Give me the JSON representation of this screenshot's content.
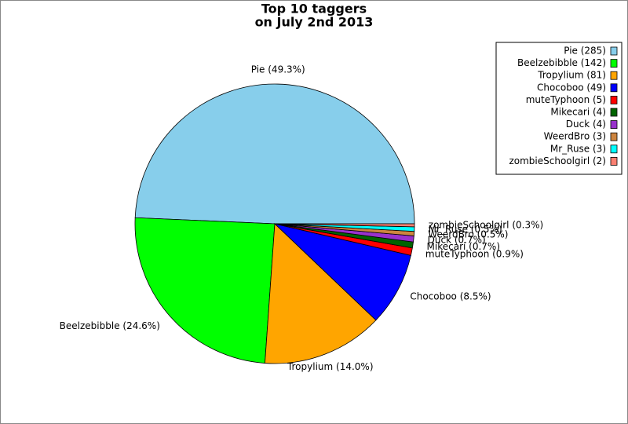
{
  "chart_data": {
    "type": "pie",
    "title_lines": [
      "Top 10 taggers",
      "on July 2nd 2013"
    ],
    "categories": [
      "Pie (285)",
      "Beelzebibble (142)",
      "Tropylium (81)",
      "Chocoboo (49)",
      "muteTyphoon (5)",
      "Mikecari (4)",
      "Duck (4)",
      "WeerdBro (3)",
      "Mr_Ruse (3)",
      "zombieSchoolgirl (2)"
    ],
    "values": [
      285,
      142,
      81,
      49,
      5,
      4,
      4,
      3,
      3,
      2
    ],
    "value_labels": [
      "Pie (49.3%)",
      "Beelzebibble (24.6%)",
      "Tropylium (14.0%)",
      "Chocoboo (8.5%)",
      "muteTyphoon (0.9%)",
      "Mikecari (0.7%)",
      "Duck (0.7%)",
      "WeerdBro (0.5%)",
      "Mr_Ruse (0.5%)",
      "zombieSchoolgirl (0.3%)"
    ],
    "colors": [
      "#87ceeb",
      "#00ff00",
      "#ffa500",
      "#0000ff",
      "#ff0000",
      "#006400",
      "#9932cc",
      "#cd853f",
      "#00ffff",
      "#fa8072"
    ],
    "legend": "upper right"
  }
}
